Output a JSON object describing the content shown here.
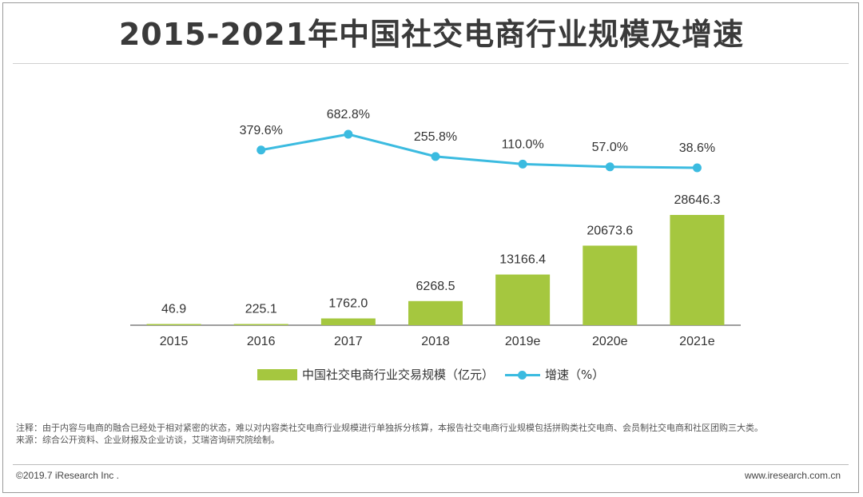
{
  "title": "2015-2021年中国社交电商行业规模及增速",
  "chart_data": {
    "type": "bar",
    "title": "2015-2021年中国社交电商行业规模及增速",
    "categories": [
      "2015",
      "2016",
      "2017",
      "2018",
      "2019e",
      "2020e",
      "2021e"
    ],
    "series": [
      {
        "name": "中国社交电商行业交易规模（亿元）",
        "type": "bar",
        "color": "#a5c73f",
        "values": [
          46.9,
          225.1,
          1762.0,
          6268.5,
          13166.4,
          20673.6,
          28646.3
        ],
        "labels": [
          "46.9",
          "225.1",
          "1762.0",
          "6268.5",
          "13166.4",
          "20673.6",
          "28646.3"
        ]
      },
      {
        "name": "增速（%）",
        "type": "line",
        "color": "#3bbbe0",
        "values": [
          null,
          379.6,
          682.8,
          255.8,
          110.0,
          57.0,
          38.6
        ],
        "labels": [
          null,
          "379.6%",
          "682.8%",
          "255.8%",
          "110.0%",
          "57.0%",
          "38.6%"
        ]
      }
    ],
    "legend_position": "bottom-center"
  },
  "notes": {
    "note": "注释：由于内容与电商的融合已经处于相对紧密的状态，难以对内容类社交电商行业规模进行单独拆分核算，本报告社交电商行业规模包括拼购类社交电商、会员制社交电商和社区团购三大类。",
    "source": "来源：综合公开资料、企业财报及企业访谈，艾瑞咨询研究院绘制。"
  },
  "footer": {
    "copyright": "©2019.7 iResearch Inc .",
    "website": "www.iresearch.com.cn"
  }
}
